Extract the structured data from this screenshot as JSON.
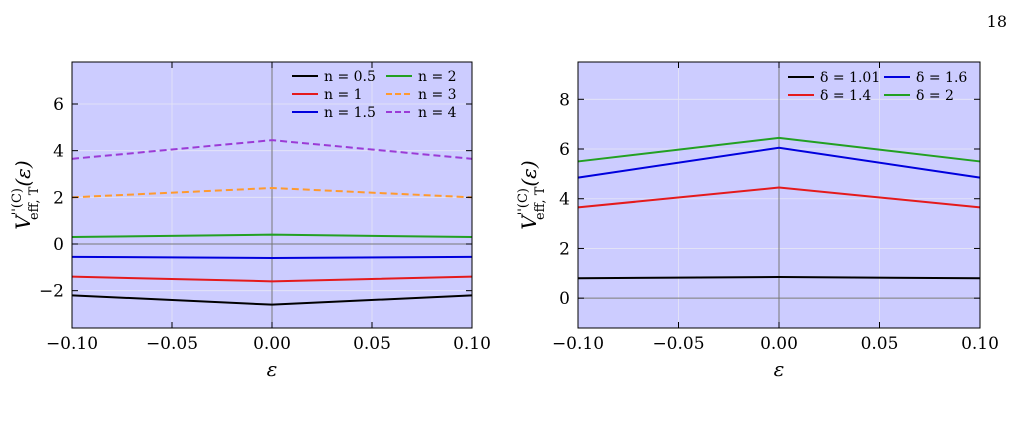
{
  "page_number": "18",
  "chart_data": [
    {
      "type": "line",
      "xlabel": "ε",
      "ylabel": {
        "main": "V",
        "sup": "''(C)",
        "sub": "eff, T",
        "arg": "(ε)"
      },
      "xlim": [
        -0.1,
        0.1
      ],
      "ylim": [
        -3.6,
        7.8
      ],
      "xticks": [
        -0.1,
        -0.05,
        0.0,
        0.05,
        0.1
      ],
      "xtick_labels": [
        "−0.10",
        "−0.05",
        "0.00",
        "0.05",
        "0.10"
      ],
      "yticks": [
        -2,
        0,
        2,
        4,
        6
      ],
      "ytick_labels": [
        "−2",
        "0",
        "2",
        "4",
        "6"
      ],
      "grid": true,
      "shaded_region_color": "#ccccff",
      "legend": {
        "placement": "top-right",
        "columns": 2
      },
      "series": [
        {
          "name": "n = 0.5",
          "color": "#000000",
          "dash": "solid",
          "x": [
            -0.1,
            0.0,
            0.1
          ],
          "y": [
            -2.2,
            -2.6,
            -2.2
          ]
        },
        {
          "name": "n = 1",
          "color": "#e41a1c",
          "dash": "solid",
          "x": [
            -0.1,
            0.0,
            0.1
          ],
          "y": [
            -1.4,
            -1.6,
            -1.4
          ]
        },
        {
          "name": "n = 1.5",
          "color": "#0000dd",
          "dash": "solid",
          "x": [
            -0.1,
            0.0,
            0.1
          ],
          "y": [
            -0.55,
            -0.6,
            -0.55
          ]
        },
        {
          "name": "n = 2",
          "color": "#22a022",
          "dash": "solid",
          "x": [
            -0.1,
            0.0,
            0.1
          ],
          "y": [
            0.3,
            0.4,
            0.3
          ]
        },
        {
          "name": "n = 3",
          "color": "#ff9a2e",
          "dash": "dashed",
          "x": [
            -0.1,
            0.0,
            0.1
          ],
          "y": [
            2.0,
            2.4,
            2.0
          ]
        },
        {
          "name": "n = 4",
          "color": "#9b3bd6",
          "dash": "dashed",
          "x": [
            -0.1,
            0.0,
            0.1
          ],
          "y": [
            3.65,
            4.45,
            3.65
          ]
        }
      ]
    },
    {
      "type": "line",
      "xlabel": "ε",
      "ylabel": {
        "main": "V",
        "sup": "''(C)",
        "sub": "eff, T",
        "arg": "(ε)"
      },
      "xlim": [
        -0.1,
        0.1
      ],
      "ylim": [
        -1.2,
        9.5
      ],
      "xticks": [
        -0.1,
        -0.05,
        0.0,
        0.05,
        0.1
      ],
      "xtick_labels": [
        "−0.10",
        "−0.05",
        "0.00",
        "0.05",
        "0.10"
      ],
      "yticks": [
        0,
        2,
        4,
        6,
        8
      ],
      "ytick_labels": [
        "0",
        "2",
        "4",
        "6",
        "8"
      ],
      "grid": true,
      "shaded_region_color": "#ccccff",
      "legend": {
        "placement": "top-right",
        "columns": 2
      },
      "series": [
        {
          "name": "δ = 1.01",
          "color": "#000000",
          "dash": "solid",
          "x": [
            -0.1,
            0.0,
            0.1
          ],
          "y": [
            0.8,
            0.85,
            0.8
          ]
        },
        {
          "name": "δ = 1.4",
          "color": "#e41a1c",
          "dash": "solid",
          "x": [
            -0.1,
            0.0,
            0.1
          ],
          "y": [
            3.65,
            4.45,
            3.65
          ]
        },
        {
          "name": "δ = 1.6",
          "color": "#0000dd",
          "dash": "solid",
          "x": [
            -0.1,
            0.0,
            0.1
          ],
          "y": [
            4.85,
            6.05,
            4.85
          ]
        },
        {
          "name": "δ = 2",
          "color": "#22a022",
          "dash": "solid",
          "x": [
            -0.1,
            0.0,
            0.1
          ],
          "y": [
            5.5,
            6.45,
            5.5
          ]
        }
      ]
    }
  ]
}
